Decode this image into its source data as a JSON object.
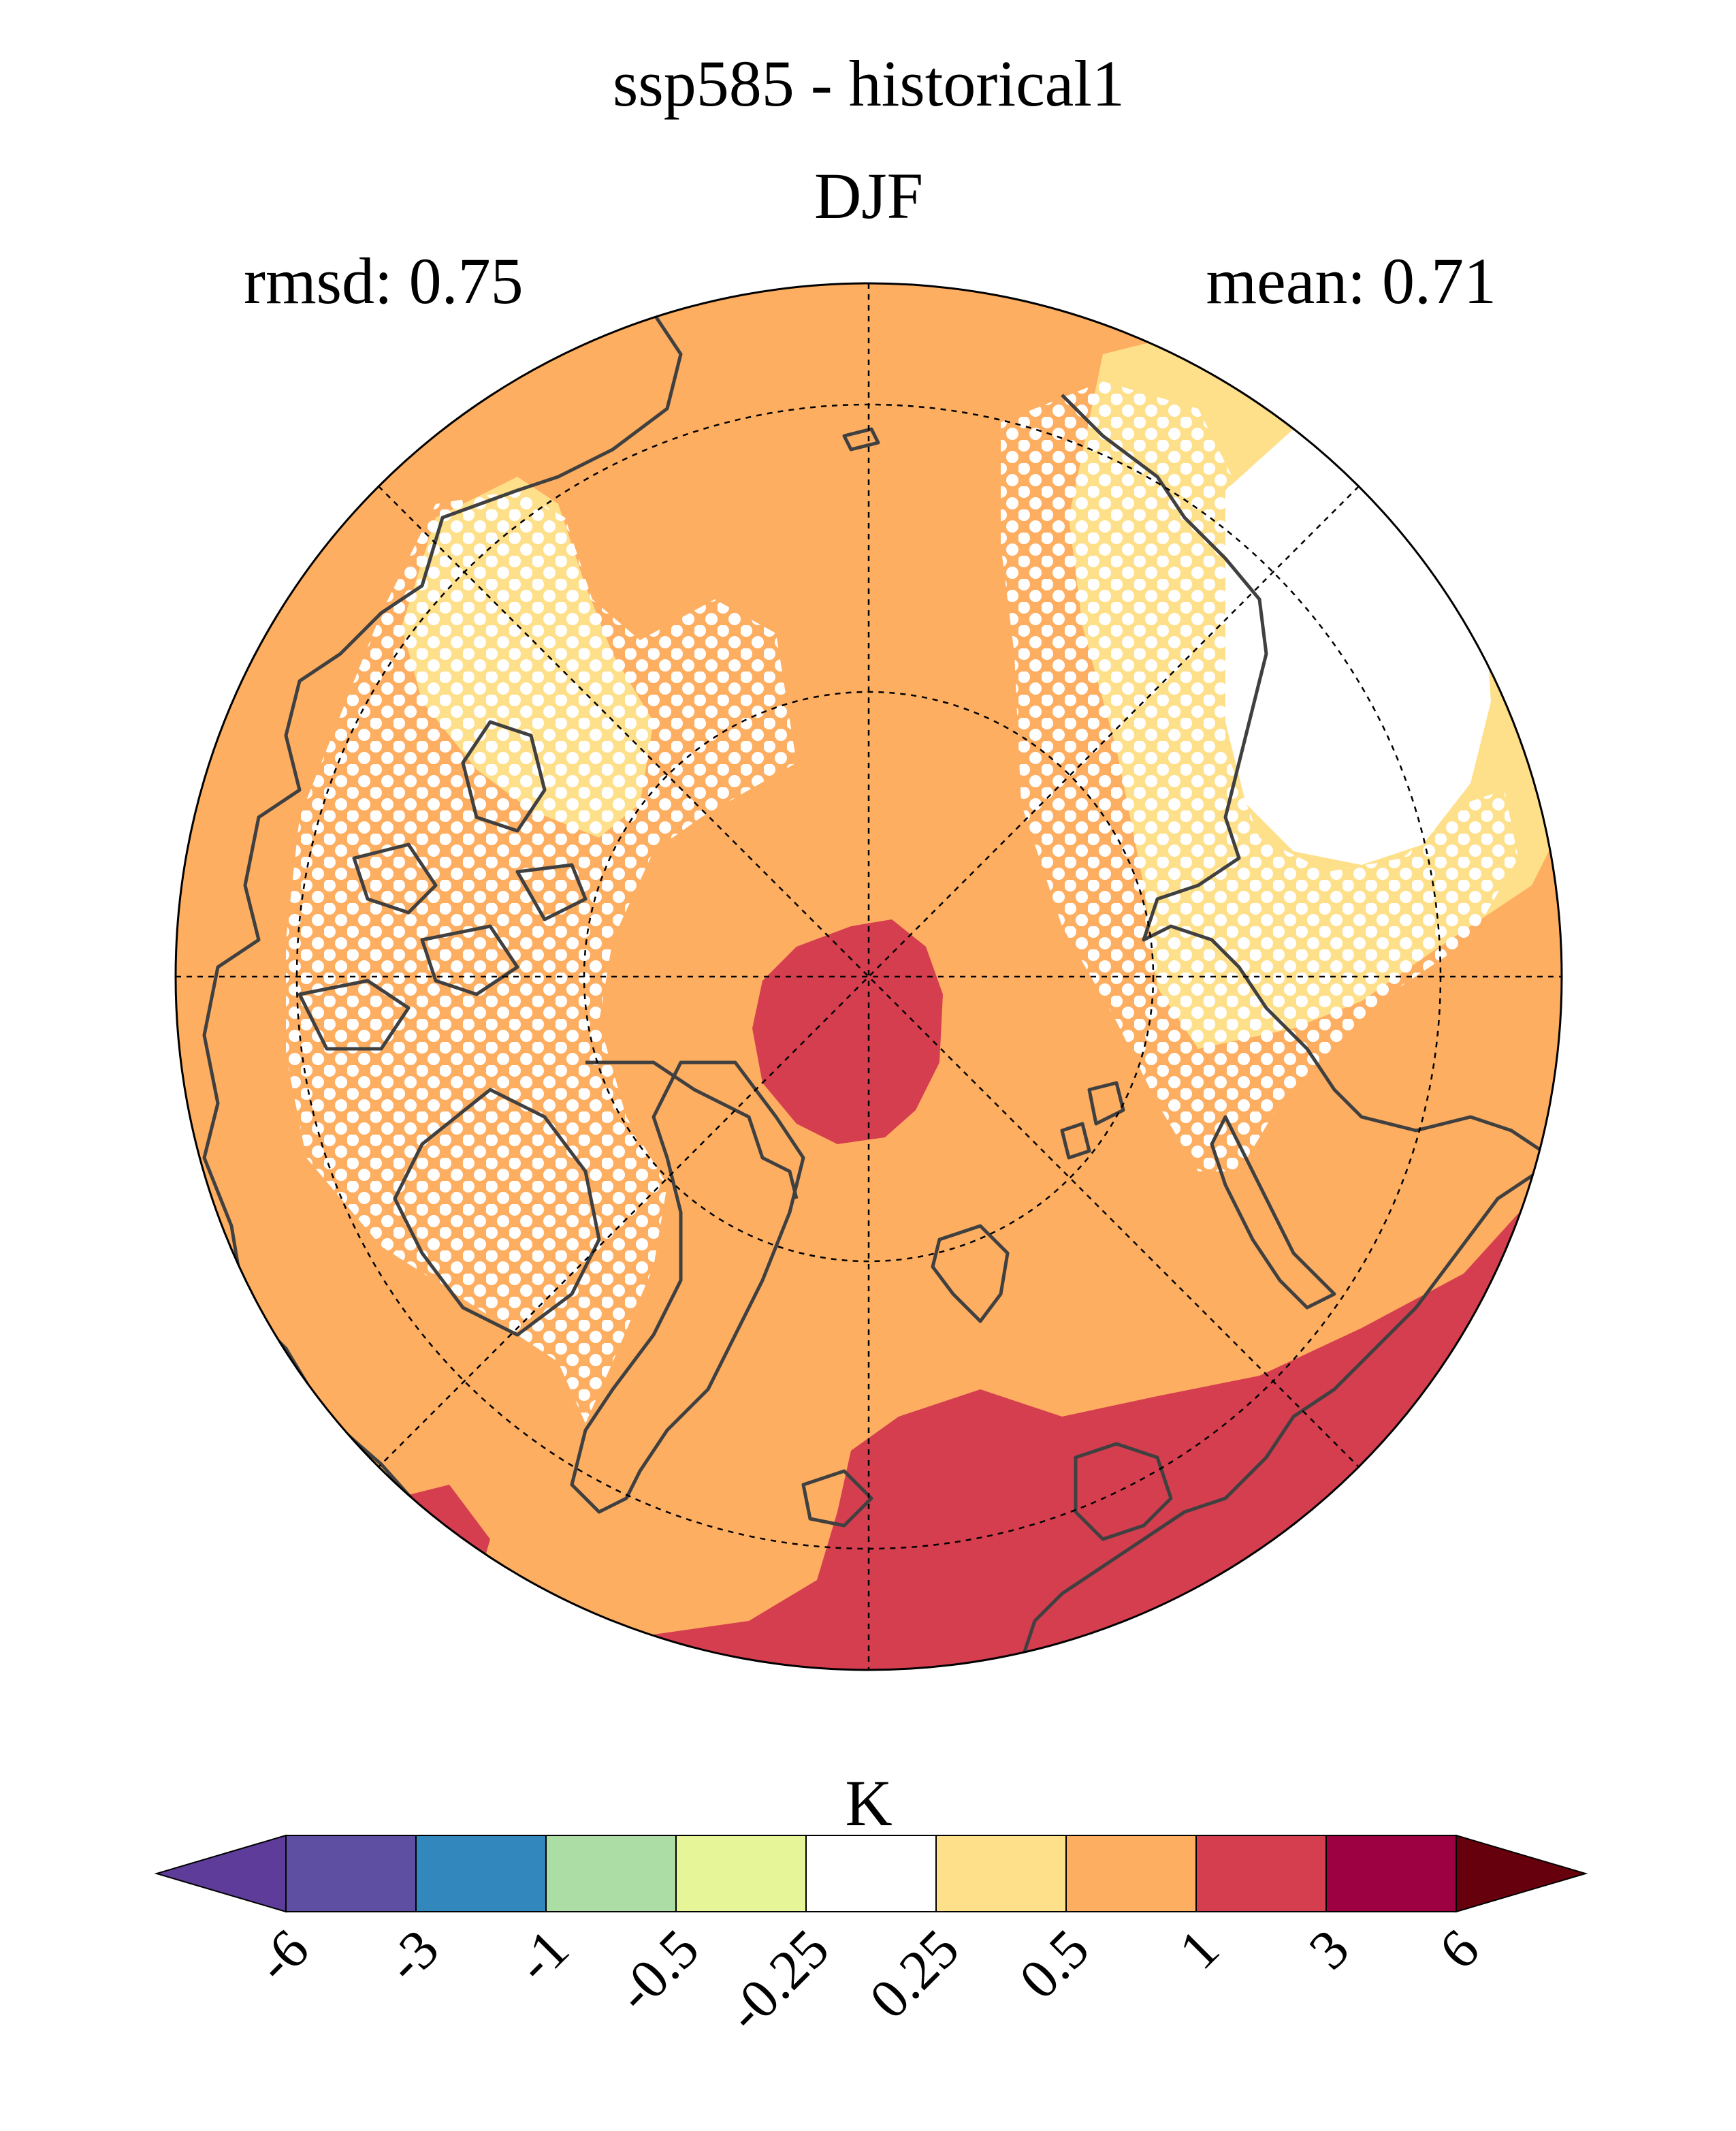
{
  "title": "ssp585 - historical1",
  "subtitle": "DJF",
  "stats": {
    "rmsd_text": "rmsd: 0.75",
    "mean_text": "mean: 0.71"
  },
  "colorbar": {
    "unit": "K",
    "ticks": [
      "-6",
      "-3",
      "-1",
      "-0.5",
      "-0.25",
      "0.25",
      "0.5",
      "1",
      "3",
      "6"
    ],
    "colors": [
      "#5e3c99",
      "#5e4fa2",
      "#3288bd",
      "#abdda4",
      "#e6f598",
      "#ffffff",
      "#fee08b",
      "#fdae61",
      "#d53e4f",
      "#9e0142",
      "#67000d"
    ],
    "extend": "both"
  },
  "map": {
    "projection": "north-polar-stereographic",
    "field": "surface temperature change (K)",
    "dominant_class": "0.5 to 1",
    "stippling": "white dots mark areas of low model agreement",
    "colors": {
      "orange": "#fdae61",
      "red": "#d53e4f",
      "yellow": "#fee08b",
      "white": "#ffffff",
      "coast": "#404040"
    }
  }
}
